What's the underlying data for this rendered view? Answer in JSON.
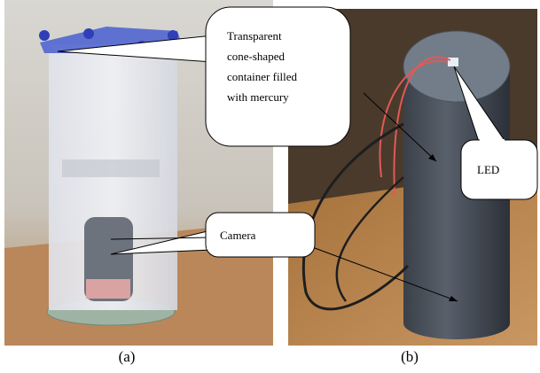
{
  "callouts": {
    "container": [
      "Transparent",
      "cone-shaped",
      "container  filled",
      "with mercury"
    ],
    "camera": "Camera",
    "led": "LED"
  },
  "labels": [
    "(a)",
    "(b)"
  ]
}
